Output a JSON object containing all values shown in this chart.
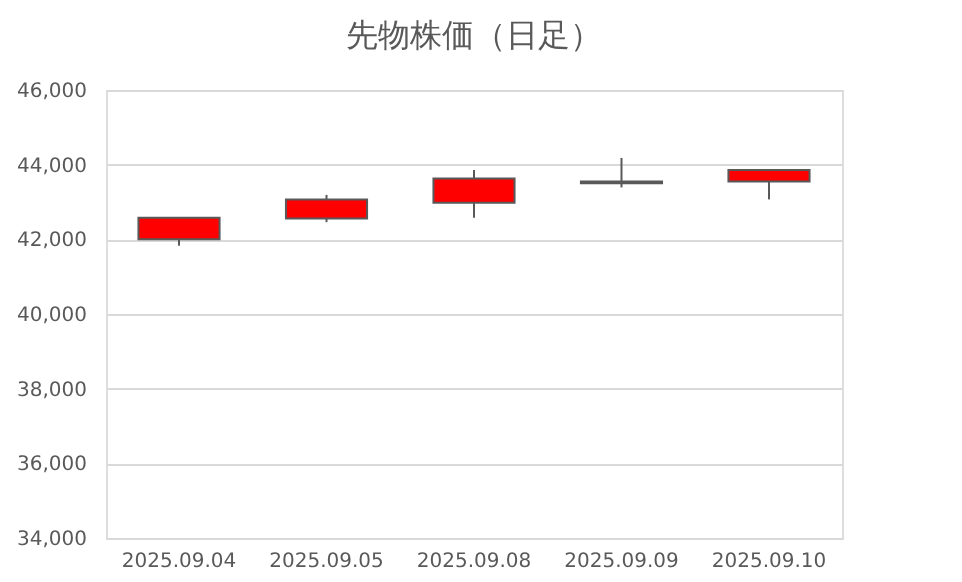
{
  "chart_data": {
    "type": "candlestick",
    "title": "先物株価（日足）",
    "categories": [
      "2025.09.04",
      "2025.09.05",
      "2025.09.08",
      "2025.09.09",
      "2025.09.10"
    ],
    "ohlc": [
      [
        42000,
        42580,
        41830,
        42580
      ],
      [
        42560,
        43190,
        42460,
        43070
      ],
      [
        42980,
        43860,
        42580,
        43630
      ],
      [
        43500,
        44180,
        43390,
        43550
      ],
      [
        43550,
        43860,
        43070,
        43860
      ]
    ],
    "color": "#ff0000",
    "ylim": [
      34000,
      46000
    ],
    "yticks": [
      {
        "value": 34000,
        "label": "34,000"
      },
      {
        "value": 36000,
        "label": "36,000"
      },
      {
        "value": 38000,
        "label": "38,000"
      },
      {
        "value": 40000,
        "label": "40,000"
      },
      {
        "value": 42000,
        "label": "42,000"
      },
      {
        "value": 44000,
        "label": "44,000"
      },
      {
        "value": 46000,
        "label": "46,000"
      }
    ],
    "grid": "y"
  }
}
